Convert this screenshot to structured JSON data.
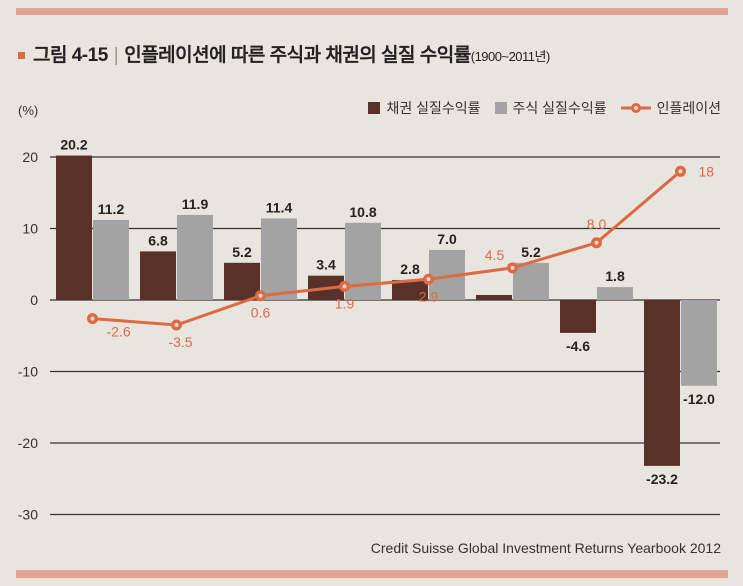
{
  "header": {
    "figure_label": "그림 4-15",
    "title": "인플레이션에 따른 주식과 채권의 실질 수익률",
    "years": "(1900~2011년)"
  },
  "source": "Credit Suisse Global Investment Returns Yearbook 2012",
  "colors": {
    "bond": "#5a3128",
    "stock": "#a3a3a3",
    "inflation": "#dc6a43",
    "accent_bar": "#e3a593"
  },
  "chart_data": {
    "type": "bar",
    "ylabel": "(%)",
    "ylim": [
      -30,
      20
    ],
    "yticks": [
      20,
      10,
      0,
      -10,
      -20,
      -30
    ],
    "grid": true,
    "legend_position": "top-right",
    "series": [
      {
        "name": "채권 실질수익률",
        "type": "bar",
        "values": [
          20.2,
          6.8,
          5.2,
          3.4,
          2.8,
          0.7,
          -4.6,
          -23.2
        ],
        "labels": [
          "20.2",
          "6.8",
          "5.2",
          "3.4",
          "2.8",
          "",
          "-4.6",
          "-23.2"
        ]
      },
      {
        "name": "주식 실질수익률",
        "type": "bar",
        "values": [
          11.2,
          11.9,
          11.4,
          10.8,
          7.0,
          5.2,
          1.8,
          -12.0
        ],
        "labels": [
          "11.2",
          "11.9",
          "11.4",
          "10.8",
          "7.0",
          "5.2",
          "1.8",
          "-12.0"
        ]
      },
      {
        "name": "인플레이션",
        "type": "line",
        "values": [
          -2.6,
          -3.5,
          0.6,
          1.9,
          2.9,
          4.5,
          8.0,
          18
        ],
        "labels": [
          "-2.6",
          "-3.5",
          "0.6",
          "1.9",
          "2.9",
          "4.5",
          "8.0",
          "18"
        ]
      }
    ]
  }
}
